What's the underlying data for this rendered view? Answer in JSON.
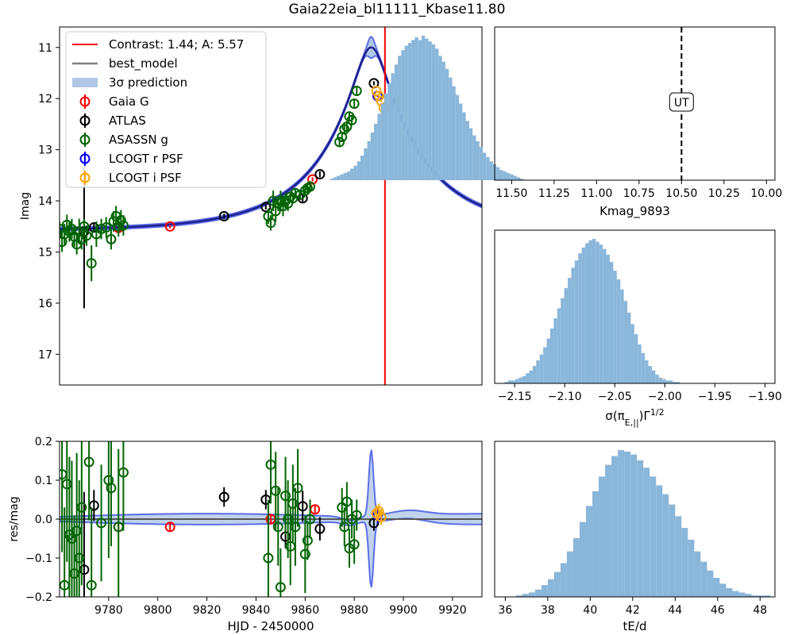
{
  "suptitle": "Gaia22eia_bl11111_Kbase11.80",
  "colors": {
    "gaia": "#ff0000",
    "atlas": "#000000",
    "asassn": "#006400",
    "lcogt_r": "#0000ff",
    "lcogt_i": "#ffa500",
    "model": "#1f1f8f",
    "band_edge": "#5b6ee8",
    "band_fill": "#b0c8e6",
    "hist": "#8ab6d9",
    "contrast_line": "#ff0000",
    "best_model": "#808080"
  },
  "chart_data": [
    {
      "type": "scatter",
      "panel": "lightcurve",
      "ylabel": "Imag",
      "xlim": [
        9760,
        9932
      ],
      "ylim": [
        17.6,
        10.6
      ],
      "yticks": [
        11,
        12,
        13,
        14,
        15,
        16,
        17
      ],
      "legend": {
        "placement": "top-left",
        "entries": [
          "Contrast: 1.44; A: 5.57",
          "best_model",
          "3σ prediction",
          "Gaia G",
          "ATLAS",
          "ASASSN g",
          "LCOGT r PSF",
          "LCOGT i PSF"
        ]
      },
      "vline_x": 9892.5,
      "model": {
        "baseline": 14.58,
        "t0": 9886.9,
        "tE": 41.5,
        "u0": 0.16,
        "peak_mag": 11.0
      },
      "series": [
        {
          "name": "Gaia G",
          "points": [
            [
              9784,
              14.53,
              0.08
            ],
            [
              9805,
              14.5,
              0.04
            ],
            [
              9863,
              13.58,
              0.04
            ]
          ]
        },
        {
          "name": "ATLAS",
          "points": [
            [
              9770,
              14.6,
              1.5
            ],
            [
              9774,
              14.52,
              0.1
            ],
            [
              9827,
              14.3,
              0.05
            ],
            [
              9844,
              14.12,
              0.05
            ],
            [
              9859,
              13.95,
              0.07
            ],
            [
              9866,
              13.48,
              0.06
            ],
            [
              9888,
              11.7,
              0.04
            ]
          ]
        },
        {
          "name": "ASASSN g",
          "points": [
            [
              9760,
              14.55,
              0.15
            ],
            [
              9761,
              14.8,
              0.2
            ],
            [
              9762,
              14.65,
              0.2
            ],
            [
              9763,
              14.47,
              0.2
            ],
            [
              9764,
              14.6,
              0.2
            ],
            [
              9765,
              14.55,
              0.2
            ],
            [
              9766,
              14.7,
              0.2
            ],
            [
              9767,
              14.85,
              0.2
            ],
            [
              9768,
              14.6,
              0.25
            ],
            [
              9769,
              14.75,
              0.2
            ],
            [
              9770,
              14.5,
              0.15
            ],
            [
              9771,
              14.68,
              0.2
            ],
            [
              9773,
              15.22,
              0.35
            ],
            [
              9775,
              14.65,
              0.25
            ],
            [
              9777,
              14.55,
              0.2
            ],
            [
              9779,
              14.52,
              0.2
            ],
            [
              9781,
              14.75,
              0.2
            ],
            [
              9782,
              14.4,
              0.2
            ],
            [
              9783,
              14.3,
              0.2
            ],
            [
              9784,
              14.5,
              0.2
            ],
            [
              9785,
              14.38,
              0.2
            ],
            [
              9786,
              14.48,
              0.2
            ],
            [
              9845,
              14.3,
              0.15
            ],
            [
              9846,
              14.43,
              0.15
            ],
            [
              9847,
              14.0,
              0.2
            ],
            [
              9848,
              14.2,
              0.2
            ],
            [
              9849,
              14.05,
              0.15
            ],
            [
              9850,
              14.0,
              0.2
            ],
            [
              9851,
              14.1,
              0.2
            ],
            [
              9852,
              14.0,
              0.15
            ],
            [
              9853,
              14.05,
              0.15
            ],
            [
              9854,
              13.92,
              0.1
            ],
            [
              9855,
              13.95,
              0.1
            ],
            [
              9856,
              13.85,
              0.1
            ],
            [
              9858,
              13.88,
              0.1
            ],
            [
              9860,
              13.8,
              0.1
            ],
            [
              9861,
              13.75,
              0.1
            ],
            [
              9862,
              13.72,
              0.1
            ],
            [
              9874,
              12.85,
              0.1
            ],
            [
              9875,
              12.75,
              0.1
            ],
            [
              9876,
              12.6,
              0.1
            ],
            [
              9877,
              12.55,
              0.1
            ],
            [
              9878,
              12.35,
              0.1
            ],
            [
              9879,
              12.42,
              0.1
            ],
            [
              9880,
              12.1,
              0.08
            ],
            [
              9881,
              11.85,
              0.08
            ]
          ]
        },
        {
          "name": "LCOGT r PSF",
          "points": [
            [
              9889.5,
              11.95,
              0.02
            ]
          ]
        },
        {
          "name": "LCOGT i PSF",
          "points": [
            [
              9889,
              11.85,
              0.02
            ],
            [
              9890,
              11.95,
              0.02
            ],
            [
              9891,
              12.05,
              0.02
            ],
            [
              9892,
              12.18,
              0.02
            ]
          ]
        }
      ]
    },
    {
      "type": "scatter",
      "panel": "residuals",
      "xlabel": "HJD - 2450000",
      "ylabel": "res/mag",
      "xlim": [
        9760,
        9932
      ],
      "ylim": [
        -0.2,
        0.2
      ],
      "xticks": [
        9780,
        9800,
        9820,
        9840,
        9860,
        9880,
        9900,
        9920
      ],
      "yticks": [
        -0.2,
        -0.1,
        0.0,
        0.1,
        0.2
      ],
      "series": [
        {
          "name": "Gaia G",
          "points": [
            [
              9784,
              -0.02,
              0.01
            ],
            [
              9805,
              -0.02,
              0.01
            ],
            [
              9846,
              0.0,
              0.01
            ],
            [
              9864,
              0.025,
              0.01
            ]
          ]
        },
        {
          "name": "ATLAS",
          "points": [
            [
              9770,
              -0.13,
              0.2
            ],
            [
              9774,
              0.035,
              0.04
            ],
            [
              9827,
              0.057,
              0.025
            ],
            [
              9844,
              0.05,
              0.025
            ],
            [
              9852,
              -0.045,
              0.03
            ],
            [
              9859,
              0.033,
              0.04
            ],
            [
              9866,
              -0.025,
              0.03
            ],
            [
              9888,
              -0.01,
              0.02
            ]
          ]
        },
        {
          "name": "ASASSN g",
          "points": [
            [
              9761,
              0.115,
              0.2
            ],
            [
              9762,
              -0.17,
              0.2
            ],
            [
              9763,
              0.09,
              0.2
            ],
            [
              9764,
              -0.04,
              0.2
            ],
            [
              9765,
              -0.05,
              0.2
            ],
            [
              9766,
              -0.14,
              0.15
            ],
            [
              9767,
              -0.03,
              0.2
            ],
            [
              9768,
              -0.1,
              0.2
            ],
            [
              9769,
              0.03,
              0.2
            ],
            [
              9772,
              0.147,
              0.15
            ],
            [
              9773,
              -0.17,
              0.2
            ],
            [
              9777,
              -0.01,
              0.15
            ],
            [
              9780,
              0.1,
              0.2
            ],
            [
              9781,
              0.08,
              0.15
            ],
            [
              9784,
              -0.02,
              0.2
            ],
            [
              9786,
              0.12,
              0.15
            ],
            [
              9845,
              -0.1,
              0.15
            ],
            [
              9846,
              0.14,
              0.1
            ],
            [
              9848,
              0.073,
              0.1
            ],
            [
              9849,
              -0.02,
              0.1
            ],
            [
              9850,
              -0.175,
              0.1
            ],
            [
              9852,
              0.06,
              0.1
            ],
            [
              9853,
              0.0,
              0.1
            ],
            [
              9854,
              -0.07,
              0.1
            ],
            [
              9855,
              0.04,
              0.1
            ],
            [
              9856,
              -0.02,
              0.1
            ],
            [
              9857,
              0.08,
              0.1
            ],
            [
              9860,
              -0.09,
              0.1
            ],
            [
              9861,
              -0.055,
              0.05
            ],
            [
              9862,
              0.0,
              0.05
            ],
            [
              9875,
              0.03,
              0.05
            ],
            [
              9876,
              -0.02,
              0.05
            ],
            [
              9877,
              0.045,
              0.05
            ],
            [
              9878,
              -0.075,
              0.05
            ],
            [
              9879,
              0.0,
              0.05
            ],
            [
              9880,
              -0.065,
              0.05
            ],
            [
              9881,
              0.01,
              0.04
            ]
          ]
        },
        {
          "name": "LCOGT r PSF",
          "points": [
            [
              9889.5,
              0.01,
              0.02
            ]
          ]
        },
        {
          "name": "LCOGT i PSF",
          "points": [
            [
              9889,
              0.015,
              0.02
            ],
            [
              9890,
              0.02,
              0.02
            ],
            [
              9891,
              0.005,
              0.02
            ]
          ]
        }
      ]
    },
    {
      "type": "histogram",
      "panel": "hist1",
      "xlabel": "Kmag_9893",
      "xlim": [
        11.6,
        9.95
      ],
      "xticks": [
        11.5,
        11.25,
        11.0,
        10.75,
        10.5,
        10.25,
        10.0
      ],
      "tick_labels": [
        "11.50",
        "11.25",
        "11.00",
        "10.75",
        "10.50",
        "10.25",
        "10.00"
      ],
      "vline_x": 10.5,
      "annotation": "UT",
      "bin_start": 11.43,
      "bin_width": 0.02,
      "counts": [
        1,
        2,
        3,
        4,
        5,
        6,
        7,
        9,
        11,
        13,
        16,
        19,
        23,
        27,
        31,
        36,
        41,
        47,
        53,
        59,
        65,
        71,
        77,
        82,
        86,
        91,
        94,
        96,
        98,
        100,
        97,
        99,
        97,
        95,
        93,
        90,
        86,
        80,
        74,
        67,
        60,
        53,
        46,
        39,
        33,
        27,
        22,
        17,
        13,
        10,
        8,
        6,
        5,
        4,
        3,
        2,
        1
      ]
    },
    {
      "type": "histogram",
      "panel": "hist2",
      "xlabel": "σ(π_E,||)Γ^1/2",
      "xlim": [
        -2.17,
        -1.89
      ],
      "xticks": [
        -2.15,
        -2.1,
        -2.05,
        -2.0,
        -1.95,
        -1.9
      ],
      "tick_labels": [
        "−2.15",
        "−2.10",
        "−2.05",
        "−2.00",
        "−1.95",
        "−1.90"
      ],
      "bin_start": -2.16,
      "bin_width": 0.0035,
      "counts": [
        1,
        2,
        2,
        3,
        4,
        5,
        7,
        9,
        12,
        16,
        20,
        25,
        31,
        38,
        45,
        52,
        59,
        66,
        73,
        80,
        85,
        90,
        94,
        97,
        99,
        100,
        98,
        96,
        93,
        89,
        84,
        78,
        72,
        65,
        57,
        49,
        41,
        34,
        27,
        21,
        16,
        12,
        9,
        6,
        4,
        3,
        2,
        2,
        1,
        1
      ]
    },
    {
      "type": "histogram",
      "panel": "hist3",
      "xlabel": "tE/d",
      "xlim": [
        35.5,
        48.7
      ],
      "xticks": [
        36,
        38,
        40,
        42,
        44,
        46,
        48
      ],
      "bin_start": 36.5,
      "bin_width": 0.3,
      "counts": [
        1,
        2,
        3,
        5,
        8,
        12,
        17,
        23,
        31,
        40,
        51,
        62,
        72,
        82,
        90,
        96,
        100,
        99,
        97,
        93,
        88,
        82,
        76,
        70,
        63,
        55,
        47,
        39,
        31,
        24,
        18,
        13,
        9,
        6,
        4,
        3,
        2,
        1,
        1,
        1
      ]
    }
  ]
}
